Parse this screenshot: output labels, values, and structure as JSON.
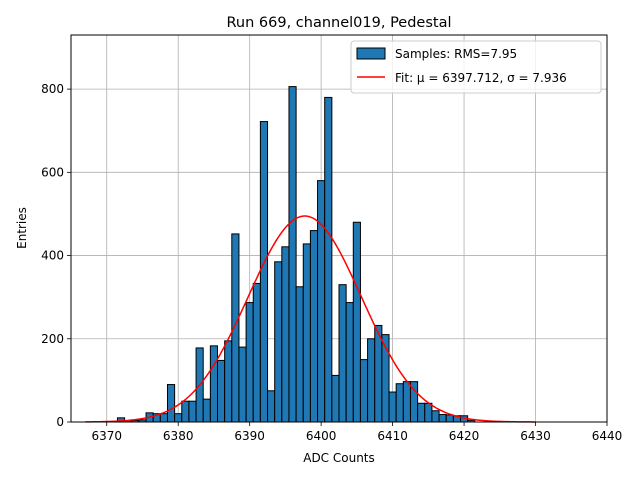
{
  "chart_data": {
    "type": "bar",
    "title": "Run 669, channel019, Pedestal",
    "xlabel": "ADC Counts",
    "ylabel": "Entries",
    "xlim": [
      6365,
      6440
    ],
    "ylim": [
      0,
      930
    ],
    "xticks": [
      6370,
      6380,
      6390,
      6400,
      6410,
      6420,
      6430,
      6440
    ],
    "yticks": [
      0,
      200,
      400,
      600,
      800
    ],
    "grid": true,
    "legend_position": "top-right",
    "bin_width": 1,
    "histogram": {
      "name": "Samples: RMS=7.95",
      "color": "#1f77b4",
      "bins": [
        {
          "x": 6372,
          "y": 10
        },
        {
          "x": 6373,
          "y": 3
        },
        {
          "x": 6374,
          "y": 4
        },
        {
          "x": 6375,
          "y": 5
        },
        {
          "x": 6376,
          "y": 22
        },
        {
          "x": 6377,
          "y": 20
        },
        {
          "x": 6378,
          "y": 20
        },
        {
          "x": 6379,
          "y": 90
        },
        {
          "x": 6380,
          "y": 20
        },
        {
          "x": 6381,
          "y": 50
        },
        {
          "x": 6382,
          "y": 50
        },
        {
          "x": 6383,
          "y": 178
        },
        {
          "x": 6384,
          "y": 55
        },
        {
          "x": 6385,
          "y": 183
        },
        {
          "x": 6386,
          "y": 148
        },
        {
          "x": 6387,
          "y": 195
        },
        {
          "x": 6388,
          "y": 452
        },
        {
          "x": 6389,
          "y": 180
        },
        {
          "x": 6390,
          "y": 287
        },
        {
          "x": 6391,
          "y": 333
        },
        {
          "x": 6392,
          "y": 722
        },
        {
          "x": 6393,
          "y": 75
        },
        {
          "x": 6394,
          "y": 385
        },
        {
          "x": 6395,
          "y": 421
        },
        {
          "x": 6396,
          "y": 806
        },
        {
          "x": 6397,
          "y": 325
        },
        {
          "x": 6398,
          "y": 428
        },
        {
          "x": 6399,
          "y": 460
        },
        {
          "x": 6400,
          "y": 580
        },
        {
          "x": 6401,
          "y": 780
        },
        {
          "x": 6402,
          "y": 112
        },
        {
          "x": 6403,
          "y": 330
        },
        {
          "x": 6404,
          "y": 287
        },
        {
          "x": 6405,
          "y": 480
        },
        {
          "x": 6406,
          "y": 150
        },
        {
          "x": 6407,
          "y": 200
        },
        {
          "x": 6408,
          "y": 232
        },
        {
          "x": 6409,
          "y": 210
        },
        {
          "x": 6410,
          "y": 72
        },
        {
          "x": 6411,
          "y": 92
        },
        {
          "x": 6412,
          "y": 97
        },
        {
          "x": 6413,
          "y": 97
        },
        {
          "x": 6414,
          "y": 45
        },
        {
          "x": 6415,
          "y": 45
        },
        {
          "x": 6416,
          "y": 27
        },
        {
          "x": 6417,
          "y": 18
        },
        {
          "x": 6418,
          "y": 17
        },
        {
          "x": 6419,
          "y": 15
        },
        {
          "x": 6420,
          "y": 15
        },
        {
          "x": 6421,
          "y": 4
        }
      ]
    },
    "fit": {
      "name": "Fit: μ = 6397.712, σ = 7.936",
      "color": "#ff0000",
      "mu": 6397.712,
      "sigma": 7.936,
      "amplitude": 495,
      "x_range": [
        6367,
        6430
      ]
    }
  }
}
